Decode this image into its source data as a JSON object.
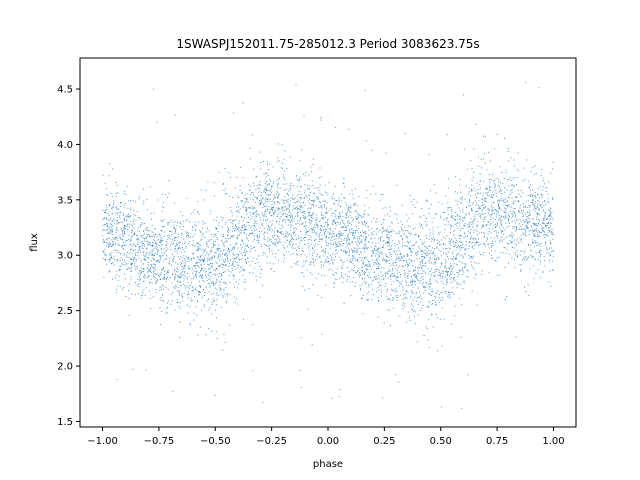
{
  "chart_data": {
    "type": "scatter",
    "title": "1SWASPJ152011.75-285012.3 Period 3083623.75s",
    "xlabel": "phase",
    "ylabel": "flux",
    "xlim": [
      -1.1,
      1.1
    ],
    "ylim": [
      1.45,
      4.78
    ],
    "grid": false,
    "legend": "none",
    "marker_color": "#1f77b4",
    "x_ticks": [
      -1.0,
      -0.75,
      -0.5,
      -0.25,
      0.0,
      0.25,
      0.5,
      0.75,
      1.0
    ],
    "x_tick_labels": [
      "−1.00",
      "−0.75",
      "−0.50",
      "−0.25",
      "0.00",
      "0.25",
      "0.50",
      "0.75",
      "1.00"
    ],
    "y_ticks": [
      1.5,
      2.0,
      2.5,
      3.0,
      3.5,
      4.0,
      4.5
    ],
    "y_tick_labels": [
      "1.5",
      "2.0",
      "2.5",
      "3.0",
      "3.5",
      "4.0",
      "4.5"
    ],
    "phase_profile": {
      "phase": [
        -1.0,
        -0.9,
        -0.8,
        -0.7,
        -0.6,
        -0.5,
        -0.4,
        -0.3,
        -0.2,
        -0.1,
        0.0,
        0.1,
        0.2,
        0.3,
        0.4,
        0.5,
        0.6,
        0.7,
        0.8,
        0.9,
        1.0
      ],
      "mean_flux": [
        3.25,
        3.15,
        3.0,
        2.95,
        2.92,
        2.9,
        3.15,
        3.4,
        3.35,
        3.3,
        3.25,
        3.15,
        3.0,
        2.95,
        2.92,
        2.9,
        3.15,
        3.4,
        3.35,
        3.3,
        3.25
      ],
      "scatter": [
        0.22,
        0.22,
        0.22,
        0.22,
        0.24,
        0.26,
        0.24,
        0.25,
        0.23,
        0.22,
        0.22,
        0.22,
        0.22,
        0.22,
        0.24,
        0.26,
        0.24,
        0.25,
        0.23,
        0.22,
        0.22
      ]
    }
  }
}
